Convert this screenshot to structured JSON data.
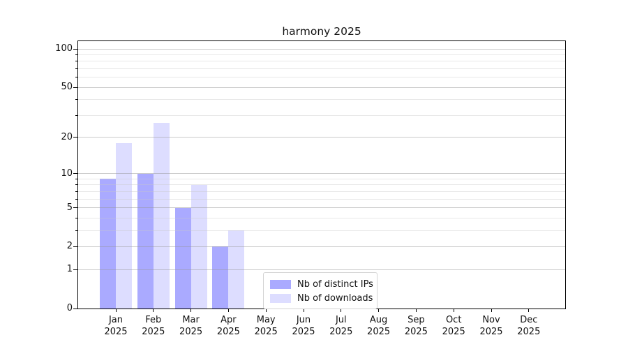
{
  "title": "harmony 2025",
  "chart_data": {
    "type": "bar",
    "title": "harmony 2025",
    "x_months": [
      "Jan",
      "Feb",
      "Mar",
      "Apr",
      "May",
      "Jun",
      "Jul",
      "Aug",
      "Sep",
      "Oct",
      "Nov",
      "Dec"
    ],
    "x_year": "2025",
    "series": [
      {
        "name": "Nb of distinct IPs",
        "color": "#aaaaff",
        "values": [
          9,
          10,
          5,
          2,
          0,
          0,
          0,
          0,
          0,
          0,
          0,
          0
        ]
      },
      {
        "name": "Nb of downloads",
        "color": "#ddddff",
        "values": [
          18,
          26,
          8,
          3,
          0,
          0,
          0,
          0,
          0,
          0,
          0,
          0
        ]
      }
    ],
    "yscale": "log1p",
    "ylim": [
      0,
      115
    ],
    "yticks": [
      {
        "v": 100,
        "label": "100"
      },
      {
        "v": 50,
        "label": "50"
      },
      {
        "v": 20,
        "label": "20"
      },
      {
        "v": 10,
        "label": "10"
      },
      {
        "v": 5,
        "label": "5"
      },
      {
        "v": 2,
        "label": "2"
      },
      {
        "v": 1,
        "label": "1"
      },
      {
        "v": 0,
        "label": "0"
      }
    ],
    "minor_yticks": [
      3,
      4,
      6,
      7,
      8,
      9,
      30,
      40,
      60,
      70,
      80,
      90
    ],
    "grid": true,
    "legend_position": "lower center"
  },
  "colors": {
    "major_grid": "rgba(150,150,150,0.5)",
    "minor_grid": "rgba(200,200,200,0.42)",
    "spine": "#000000",
    "legend_border": "#d4d4d4"
  }
}
